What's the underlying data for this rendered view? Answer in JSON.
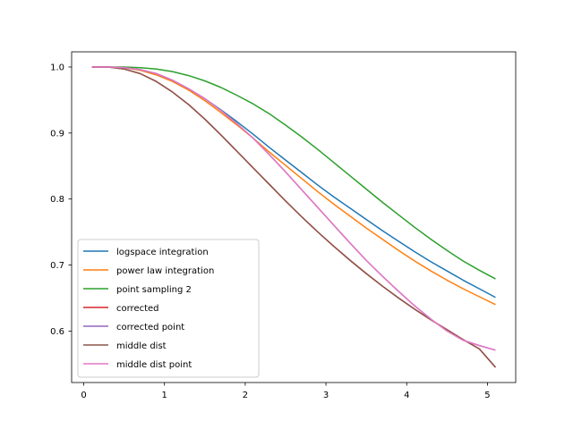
{
  "chart_data": {
    "type": "line",
    "title": "",
    "xlabel": "",
    "ylabel": "",
    "xlim": [
      -0.15,
      5.35
    ],
    "ylim": [
      0.522,
      1.023
    ],
    "x_ticks": [
      0,
      1,
      2,
      3,
      4,
      5
    ],
    "y_ticks": [
      0.6,
      0.7,
      0.8,
      0.9,
      1.0
    ],
    "x_tick_labels": [
      "0",
      "1",
      "2",
      "3",
      "4",
      "5"
    ],
    "y_tick_labels": [
      "0.6",
      "0.7",
      "0.8",
      "0.9",
      "1.0"
    ],
    "grid": false,
    "legend_position": "lower-left",
    "series": [
      {
        "name": "logspace integration",
        "color": "#1f77b4",
        "points": [
          [
            0.1,
            1.0
          ],
          [
            0.3,
            1.0
          ],
          [
            0.5,
            0.999
          ],
          [
            0.7,
            0.996
          ],
          [
            0.9,
            0.99
          ],
          [
            1.1,
            0.98
          ],
          [
            1.3,
            0.967
          ],
          [
            1.5,
            0.952
          ],
          [
            1.7,
            0.935
          ],
          [
            1.9,
            0.917
          ],
          [
            2.1,
            0.898
          ],
          [
            2.3,
            0.878
          ],
          [
            2.5,
            0.859
          ],
          [
            2.7,
            0.84
          ],
          [
            2.9,
            0.821
          ],
          [
            3.1,
            0.803
          ],
          [
            3.3,
            0.786
          ],
          [
            3.5,
            0.769
          ],
          [
            3.7,
            0.752
          ],
          [
            3.9,
            0.736
          ],
          [
            4.1,
            0.72
          ],
          [
            4.3,
            0.705
          ],
          [
            4.5,
            0.691
          ],
          [
            4.7,
            0.677
          ],
          [
            4.9,
            0.664
          ],
          [
            5.1,
            0.651
          ]
        ]
      },
      {
        "name": "power law integration",
        "color": "#ff7f0e",
        "points": [
          [
            0.1,
            1.0
          ],
          [
            0.3,
            1.0
          ],
          [
            0.5,
            0.999
          ],
          [
            0.7,
            0.995
          ],
          [
            0.9,
            0.988
          ],
          [
            1.1,
            0.978
          ],
          [
            1.3,
            0.965
          ],
          [
            1.5,
            0.949
          ],
          [
            1.7,
            0.931
          ],
          [
            1.9,
            0.912
          ],
          [
            2.1,
            0.892
          ],
          [
            2.3,
            0.871
          ],
          [
            2.5,
            0.851
          ],
          [
            2.7,
            0.831
          ],
          [
            2.9,
            0.811
          ],
          [
            3.1,
            0.792
          ],
          [
            3.3,
            0.774
          ],
          [
            3.5,
            0.756
          ],
          [
            3.7,
            0.739
          ],
          [
            3.9,
            0.722
          ],
          [
            4.1,
            0.706
          ],
          [
            4.3,
            0.691
          ],
          [
            4.5,
            0.677
          ],
          [
            4.7,
            0.664
          ],
          [
            4.9,
            0.652
          ],
          [
            5.1,
            0.64
          ]
        ]
      },
      {
        "name": "point sampling 2",
        "color": "#2ca02c",
        "points": [
          [
            0.1,
            1.0
          ],
          [
            0.3,
            1.0
          ],
          [
            0.5,
            1.0
          ],
          [
            0.7,
            0.999
          ],
          [
            0.9,
            0.997
          ],
          [
            1.1,
            0.993
          ],
          [
            1.3,
            0.987
          ],
          [
            1.5,
            0.979
          ],
          [
            1.7,
            0.969
          ],
          [
            1.9,
            0.957
          ],
          [
            2.1,
            0.944
          ],
          [
            2.3,
            0.929
          ],
          [
            2.5,
            0.912
          ],
          [
            2.7,
            0.894
          ],
          [
            2.9,
            0.875
          ],
          [
            3.1,
            0.855
          ],
          [
            3.3,
            0.835
          ],
          [
            3.5,
            0.815
          ],
          [
            3.7,
            0.795
          ],
          [
            3.9,
            0.776
          ],
          [
            4.1,
            0.757
          ],
          [
            4.3,
            0.739
          ],
          [
            4.5,
            0.722
          ],
          [
            4.7,
            0.706
          ],
          [
            4.9,
            0.692
          ],
          [
            5.1,
            0.679
          ]
        ]
      },
      {
        "name": "corrected",
        "color": "#d62728",
        "points": [
          [
            0.1,
            1.0
          ],
          [
            0.3,
            1.0
          ],
          [
            0.5,
            0.997
          ],
          [
            0.7,
            0.99
          ],
          [
            0.9,
            0.978
          ],
          [
            1.1,
            0.962
          ],
          [
            1.3,
            0.943
          ],
          [
            1.5,
            0.921
          ],
          [
            1.7,
            0.897
          ],
          [
            1.9,
            0.872
          ],
          [
            2.1,
            0.847
          ],
          [
            2.3,
            0.822
          ],
          [
            2.5,
            0.797
          ],
          [
            2.7,
            0.773
          ],
          [
            2.9,
            0.75
          ],
          [
            3.1,
            0.728
          ],
          [
            3.3,
            0.707
          ],
          [
            3.5,
            0.687
          ],
          [
            3.7,
            0.668
          ],
          [
            3.9,
            0.65
          ],
          [
            4.1,
            0.633
          ],
          [
            4.3,
            0.617
          ],
          [
            4.5,
            0.602
          ],
          [
            4.7,
            0.587
          ],
          [
            4.9,
            0.573
          ],
          [
            5.1,
            0.545
          ]
        ]
      },
      {
        "name": "corrected point",
        "color": "#9467bd",
        "points": [
          [
            0.1,
            1.0
          ],
          [
            0.3,
            1.0
          ],
          [
            0.5,
            0.999
          ],
          [
            0.7,
            0.996
          ],
          [
            0.9,
            0.99
          ],
          [
            1.1,
            0.98
          ],
          [
            1.3,
            0.967
          ],
          [
            1.5,
            0.952
          ],
          [
            1.7,
            0.934
          ],
          [
            1.9,
            0.914
          ],
          [
            2.1,
            0.892
          ],
          [
            2.3,
            0.867
          ],
          [
            2.5,
            0.841
          ],
          [
            2.7,
            0.814
          ],
          [
            2.9,
            0.787
          ],
          [
            3.1,
            0.76
          ],
          [
            3.3,
            0.733
          ],
          [
            3.5,
            0.707
          ],
          [
            3.7,
            0.683
          ],
          [
            3.9,
            0.66
          ],
          [
            4.1,
            0.638
          ],
          [
            4.3,
            0.618
          ],
          [
            4.5,
            0.6
          ],
          [
            4.7,
            0.586
          ],
          [
            4.9,
            0.578
          ],
          [
            5.1,
            0.571
          ]
        ]
      },
      {
        "name": "middle dist",
        "color": "#8c564b",
        "points": [
          [
            0.1,
            1.0
          ],
          [
            0.3,
            1.0
          ],
          [
            0.5,
            0.997
          ],
          [
            0.7,
            0.99
          ],
          [
            0.9,
            0.978
          ],
          [
            1.1,
            0.962
          ],
          [
            1.3,
            0.943
          ],
          [
            1.5,
            0.921
          ],
          [
            1.7,
            0.897
          ],
          [
            1.9,
            0.872
          ],
          [
            2.1,
            0.847
          ],
          [
            2.3,
            0.822
          ],
          [
            2.5,
            0.797
          ],
          [
            2.7,
            0.773
          ],
          [
            2.9,
            0.75
          ],
          [
            3.1,
            0.728
          ],
          [
            3.3,
            0.707
          ],
          [
            3.5,
            0.687
          ],
          [
            3.7,
            0.668
          ],
          [
            3.9,
            0.65
          ],
          [
            4.1,
            0.633
          ],
          [
            4.3,
            0.617
          ],
          [
            4.5,
            0.602
          ],
          [
            4.7,
            0.587
          ],
          [
            4.9,
            0.573
          ],
          [
            5.1,
            0.545
          ]
        ]
      },
      {
        "name": "middle dist point",
        "color": "#e377c2",
        "points": [
          [
            0.1,
            1.0
          ],
          [
            0.3,
            1.0
          ],
          [
            0.5,
            0.999
          ],
          [
            0.7,
            0.996
          ],
          [
            0.9,
            0.99
          ],
          [
            1.1,
            0.98
          ],
          [
            1.3,
            0.967
          ],
          [
            1.5,
            0.952
          ],
          [
            1.7,
            0.934
          ],
          [
            1.9,
            0.914
          ],
          [
            2.1,
            0.892
          ],
          [
            2.3,
            0.867
          ],
          [
            2.5,
            0.841
          ],
          [
            2.7,
            0.814
          ],
          [
            2.9,
            0.787
          ],
          [
            3.1,
            0.76
          ],
          [
            3.3,
            0.733
          ],
          [
            3.5,
            0.707
          ],
          [
            3.7,
            0.683
          ],
          [
            3.9,
            0.66
          ],
          [
            4.1,
            0.638
          ],
          [
            4.3,
            0.618
          ],
          [
            4.5,
            0.6
          ],
          [
            4.7,
            0.586
          ],
          [
            4.9,
            0.578
          ],
          [
            5.1,
            0.571
          ]
        ]
      }
    ]
  }
}
